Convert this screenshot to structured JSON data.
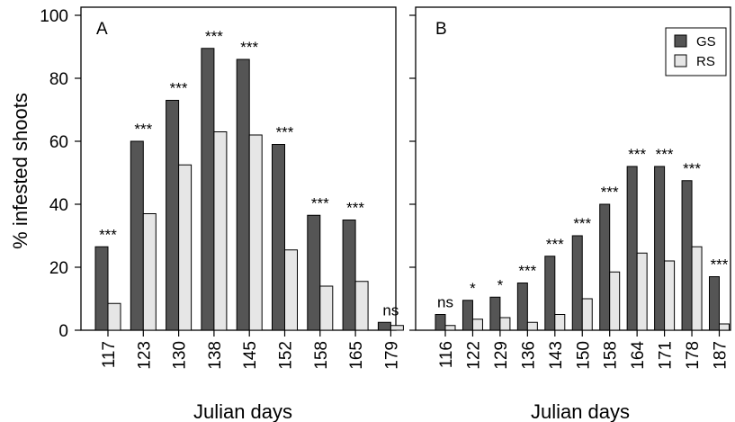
{
  "figure": {
    "ylabel": "% infested shoots",
    "yticks": [
      0,
      20,
      40,
      60,
      80,
      100
    ],
    "legend": {
      "placement": "top-right of panel B",
      "entries": [
        "GS",
        "RS"
      ]
    }
  },
  "chart_data": [
    {
      "panel": "A",
      "type": "bar",
      "xlabel": "Julian days",
      "ylabel": "% infested shoots",
      "ylim": [
        0,
        100
      ],
      "categories": [
        "117",
        "123",
        "130",
        "138",
        "145",
        "152",
        "158",
        "165",
        "179"
      ],
      "series": [
        {
          "name": "GS",
          "color": "#555555",
          "values": [
            26.5,
            60,
            73,
            89.5,
            86,
            59,
            36.5,
            35,
            2.5
          ]
        },
        {
          "name": "RS",
          "color": "#e6e6e6",
          "values": [
            8.5,
            37,
            52.5,
            63,
            62,
            25.5,
            14,
            15.5,
            1.5
          ]
        }
      ],
      "significance": [
        "***",
        "***",
        "***",
        "***",
        "***",
        "***",
        "***",
        "***",
        "ns"
      ]
    },
    {
      "panel": "B",
      "type": "bar",
      "xlabel": "Julian days",
      "ylabel": "",
      "ylim": [
        0,
        100
      ],
      "categories": [
        "116",
        "122",
        "129",
        "136",
        "143",
        "150",
        "158",
        "164",
        "171",
        "178",
        "187"
      ],
      "series": [
        {
          "name": "GS",
          "color": "#555555",
          "values": [
            5,
            9.5,
            10.5,
            15,
            23.5,
            30,
            40,
            52,
            52,
            47.5,
            17
          ]
        },
        {
          "name": "RS",
          "color": "#e6e6e6",
          "values": [
            1.5,
            3.5,
            4,
            2.5,
            5,
            10,
            18.5,
            24.5,
            22,
            26.5,
            2
          ]
        }
      ],
      "significance": [
        "ns",
        "*",
        "*",
        "***",
        "***",
        "***",
        "***",
        "***",
        "***",
        "***",
        "***"
      ]
    }
  ]
}
